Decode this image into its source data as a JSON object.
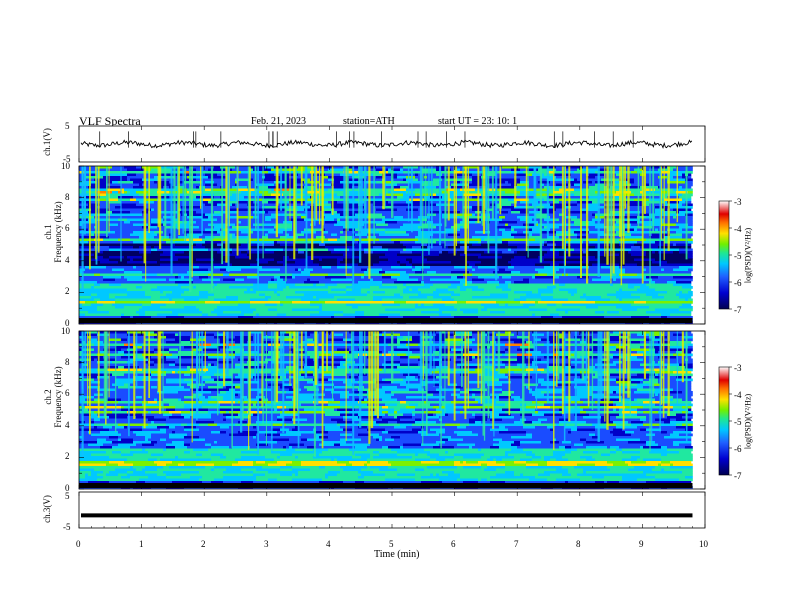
{
  "header": {
    "title": "VLF  Spectra",
    "date": "Feb. 21, 2023",
    "station": "station=ATH",
    "start": "start  UT  =    23: 10: 1"
  },
  "colors": {
    "scale": [
      "#000060",
      "#0000c8",
      "#1a4cff",
      "#00c8ff",
      "#20e8a0",
      "#7cf000",
      "#ffe000",
      "#ff8000",
      "#e00000",
      "#ffffff"
    ]
  },
  "chart_data": [
    {
      "type": "line",
      "name": "ch1-waveform",
      "ylabel": "ch.1(V)",
      "ylim": [
        -5,
        5
      ],
      "yticks": [
        "5",
        "-5"
      ],
      "xlim": [
        0,
        10
      ],
      "baseline": 0
    },
    {
      "type": "heatmap",
      "name": "ch1-spectrogram",
      "ylabel": "ch.1\nFrequency  (kHz)",
      "ylabel_lines": [
        "ch.1",
        "Frequency  (kHz)"
      ],
      "ylim": [
        0,
        10
      ],
      "yticks": [
        "0",
        "2",
        "4",
        "6",
        "8",
        "10"
      ],
      "xlim": [
        0,
        10
      ],
      "data_end_min": 9.8,
      "colorbar": {
        "label": "log(PSD)(V²/Hz)",
        "range": [
          -7,
          -3
        ],
        "ticks": [
          "-3",
          "-4",
          "-5",
          "-6",
          "-7"
        ]
      }
    },
    {
      "type": "heatmap",
      "name": "ch2-spectrogram",
      "ylabel": "ch.2\nFrequency  (kHz)",
      "ylabel_lines": [
        "ch.2",
        "Frequency  (kHz)"
      ],
      "ylim": [
        0,
        10
      ],
      "yticks": [
        "0",
        "2",
        "4",
        "6",
        "8",
        "10"
      ],
      "xlim": [
        0,
        10
      ],
      "data_end_min": 9.8,
      "colorbar": {
        "label": "log(PSD)(V²/Hz)",
        "range": [
          -7,
          -3
        ],
        "ticks": [
          "-3",
          "-4",
          "-5",
          "-6",
          "-7"
        ]
      }
    },
    {
      "type": "line",
      "name": "ch3-waveform",
      "ylabel": "ch.3(V)",
      "ylim": [
        -5,
        5
      ],
      "yticks": [
        "5",
        "-5"
      ],
      "xlim": [
        0,
        10
      ],
      "baseline": -1.5,
      "xlabel": "Time  (min)",
      "xticks": [
        "0",
        "1",
        "2",
        "3",
        "4",
        "5",
        "6",
        "7",
        "8",
        "9",
        "10"
      ]
    }
  ]
}
